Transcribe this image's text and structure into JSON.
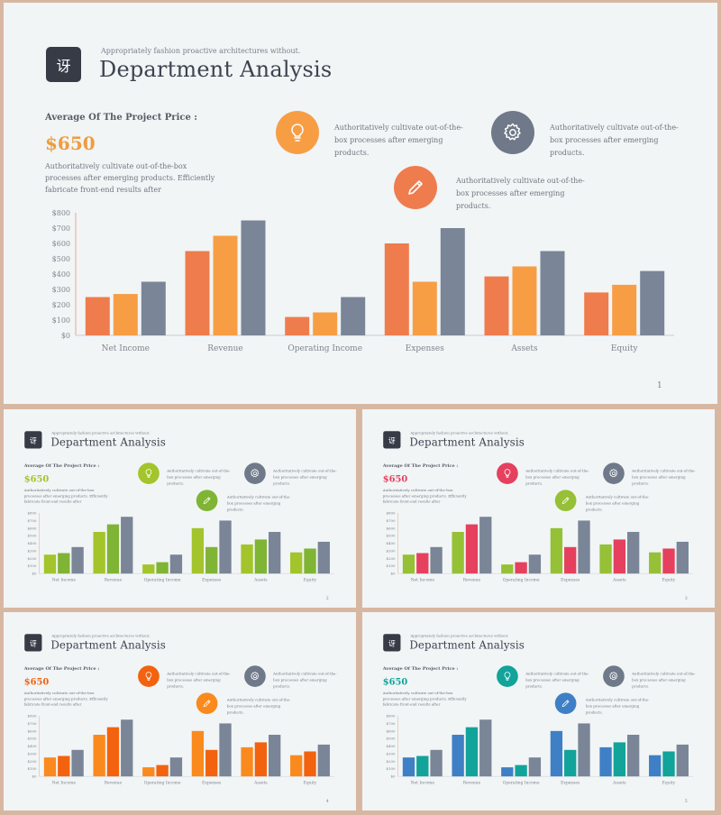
{
  "slide": {
    "logo_char": "讶",
    "subtitle": "Appropriately fashion proactive architectures without.",
    "title": "Department Analysis",
    "avg_label": "Average Of The Project Price :",
    "avg_value": "$650",
    "avg_desc": "Authoritatively cultivate out-of-the-box processes after emerging products. Efficiently fabricate front-end results after",
    "features": [
      {
        "icon": "lightbulb-icon",
        "text": "Authoritatively cultivate out-of-the-box processes after emerging products."
      },
      {
        "icon": "gear-icon",
        "text": "Authoritatively cultivate out-of-the-box processes after emerging products."
      },
      {
        "icon": "pencil-icon",
        "text": "Authoritatively cultivate out-of-the-box processes after emerging products."
      }
    ]
  },
  "chart_data": {
    "type": "bar",
    "categories": [
      "Net Income",
      "Revenue",
      "Operating Income",
      "Expenses",
      "Assets",
      "Equity"
    ],
    "series": [
      {
        "values": [
          250,
          550,
          120,
          600,
          385,
          280
        ]
      },
      {
        "values": [
          270,
          650,
          150,
          350,
          450,
          330
        ]
      },
      {
        "values": [
          350,
          750,
          250,
          700,
          550,
          420
        ]
      }
    ],
    "y_ticks": [
      "$0",
      "$100",
      "$200",
      "$300",
      "$400",
      "$500",
      "$600",
      "$700",
      "$800"
    ],
    "ylim": [
      0,
      800
    ]
  },
  "variants": [
    {
      "page": "1",
      "colors": [
        "#ef7c4d",
        "#f79e45",
        "#7a8597"
      ],
      "avg_color": "#f09c3e",
      "icon1": "#f79e45",
      "icon2": "#6f7989",
      "icon3": "#ef7c4d"
    },
    {
      "page": "2",
      "colors": [
        "#a3c42b",
        "#7fb434",
        "#7a8597"
      ],
      "avg_color": "#a3c42b",
      "icon1": "#a3c42b",
      "icon2": "#6f7989",
      "icon3": "#7fb434"
    },
    {
      "page": "3",
      "colors": [
        "#96c035",
        "#e5405e",
        "#7a8597"
      ],
      "avg_color": "#e5405e",
      "icon1": "#e5405e",
      "icon2": "#6f7989",
      "icon3": "#96c035"
    },
    {
      "page": "4",
      "colors": [
        "#fa8a1e",
        "#f3620e",
        "#7a8597"
      ],
      "avg_color": "#f3620e",
      "icon1": "#f3620e",
      "icon2": "#6f7989",
      "icon3": "#fa8a1e"
    },
    {
      "page": "5",
      "colors": [
        "#3f7fc6",
        "#12a39a",
        "#7a8597"
      ],
      "avg_color": "#12a39a",
      "icon1": "#12a39a",
      "icon2": "#6f7989",
      "icon3": "#3f7fc6"
    }
  ]
}
